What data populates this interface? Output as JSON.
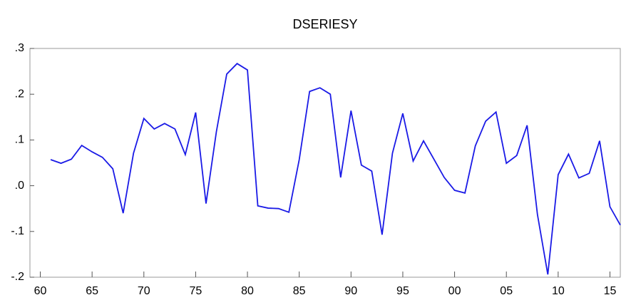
{
  "chart_data": {
    "type": "line",
    "title": "DSERIESY",
    "x": [
      1961,
      1962,
      1963,
      1964,
      1965,
      1966,
      1967,
      1968,
      1969,
      1970,
      1971,
      1972,
      1973,
      1974,
      1975,
      1976,
      1977,
      1978,
      1979,
      1980,
      1981,
      1982,
      1983,
      1984,
      1985,
      1986,
      1987,
      1988,
      1989,
      1990,
      1991,
      1992,
      1993,
      1994,
      1995,
      1996,
      1997,
      1998,
      1999,
      2000,
      2001,
      2002,
      2003,
      2004,
      2005,
      2006,
      2007,
      2008,
      2009,
      2010,
      2011,
      2012,
      2013,
      2014,
      2015,
      2016
    ],
    "series": [
      {
        "name": "DSERIESY",
        "color": "#1a1ae6",
        "values": [
          0.057,
          0.049,
          0.058,
          0.088,
          0.074,
          0.062,
          0.037,
          -0.06,
          0.071,
          0.147,
          0.124,
          0.136,
          0.124,
          0.068,
          0.16,
          -0.039,
          0.118,
          0.244,
          0.267,
          0.253,
          -0.044,
          -0.049,
          -0.05,
          -0.058,
          0.057,
          0.206,
          0.214,
          0.2,
          0.018,
          0.164,
          0.045,
          0.032,
          -0.107,
          0.071,
          0.158,
          0.054,
          0.098,
          0.058,
          0.018,
          -0.01,
          -0.016,
          0.087,
          0.141,
          0.161,
          0.049,
          0.066,
          0.132,
          -0.063,
          -0.194,
          0.024,
          0.069,
          0.017,
          0.027,
          0.098,
          -0.046,
          -0.086
        ]
      }
    ],
    "xlim": [
      1959,
      2016
    ],
    "xticks": [
      {
        "value": 1960,
        "label": "60"
      },
      {
        "value": 1965,
        "label": "65"
      },
      {
        "value": 1970,
        "label": "70"
      },
      {
        "value": 1975,
        "label": "75"
      },
      {
        "value": 1980,
        "label": "80"
      },
      {
        "value": 1985,
        "label": "85"
      },
      {
        "value": 1990,
        "label": "90"
      },
      {
        "value": 1995,
        "label": "95"
      },
      {
        "value": 2000,
        "label": "00"
      },
      {
        "value": 2005,
        "label": "05"
      },
      {
        "value": 2010,
        "label": "10"
      },
      {
        "value": 2015,
        "label": "15"
      }
    ],
    "ylim": [
      -0.2,
      0.3
    ],
    "yticks": [
      {
        "value": 0.3,
        "label": ".3"
      },
      {
        "value": 0.2,
        "label": ".2"
      },
      {
        "value": 0.1,
        "label": ".1"
      },
      {
        "value": 0.0,
        "label": ".0"
      },
      {
        "value": -0.1,
        "label": "-.1"
      },
      {
        "value": -0.2,
        "label": "-.2"
      }
    ],
    "grid": false
  }
}
